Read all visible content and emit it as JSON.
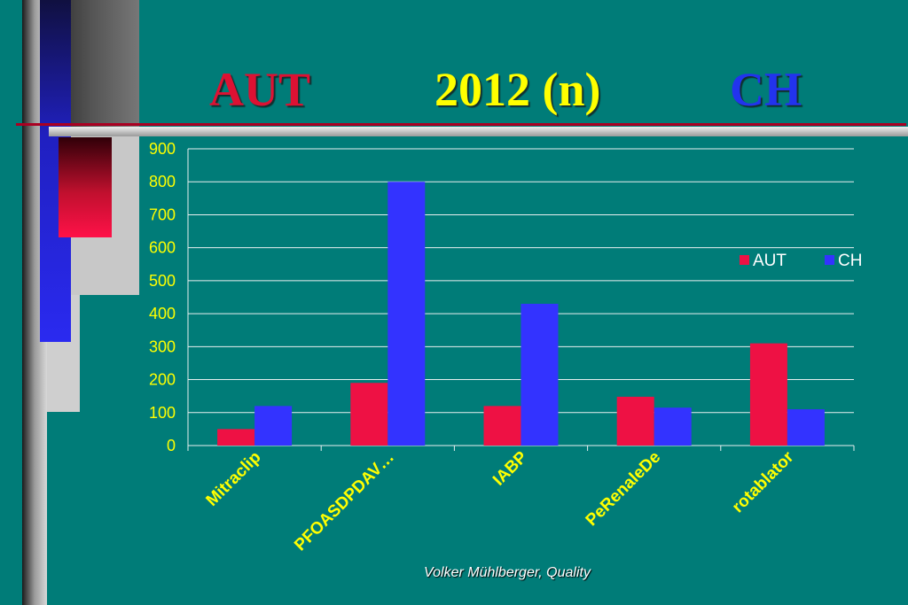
{
  "slide": {
    "title_left": "AUT",
    "title_center": "2012  (n)",
    "title_right": "CH",
    "footer": "Volker Mühlberger, Quality"
  },
  "colors": {
    "background": "#007C78",
    "aut": "#EE1144",
    "ch": "#3333FF",
    "axis_text": "#FFFF00"
  },
  "chart_data": {
    "type": "bar",
    "categories": [
      "Mitraclip",
      "PFOASDPDAV…",
      "IABP",
      "PeRenaleDe",
      "rotablator"
    ],
    "series": [
      {
        "name": "AUT",
        "values": [
          50,
          190,
          120,
          148,
          310
        ]
      },
      {
        "name": "CH",
        "values": [
          120,
          800,
          430,
          115,
          110
        ]
      }
    ],
    "ylim": [
      0,
      900
    ],
    "yticks": [
      0,
      100,
      200,
      300,
      400,
      500,
      600,
      700,
      800,
      900
    ],
    "grid": true,
    "legend_position": "right"
  }
}
